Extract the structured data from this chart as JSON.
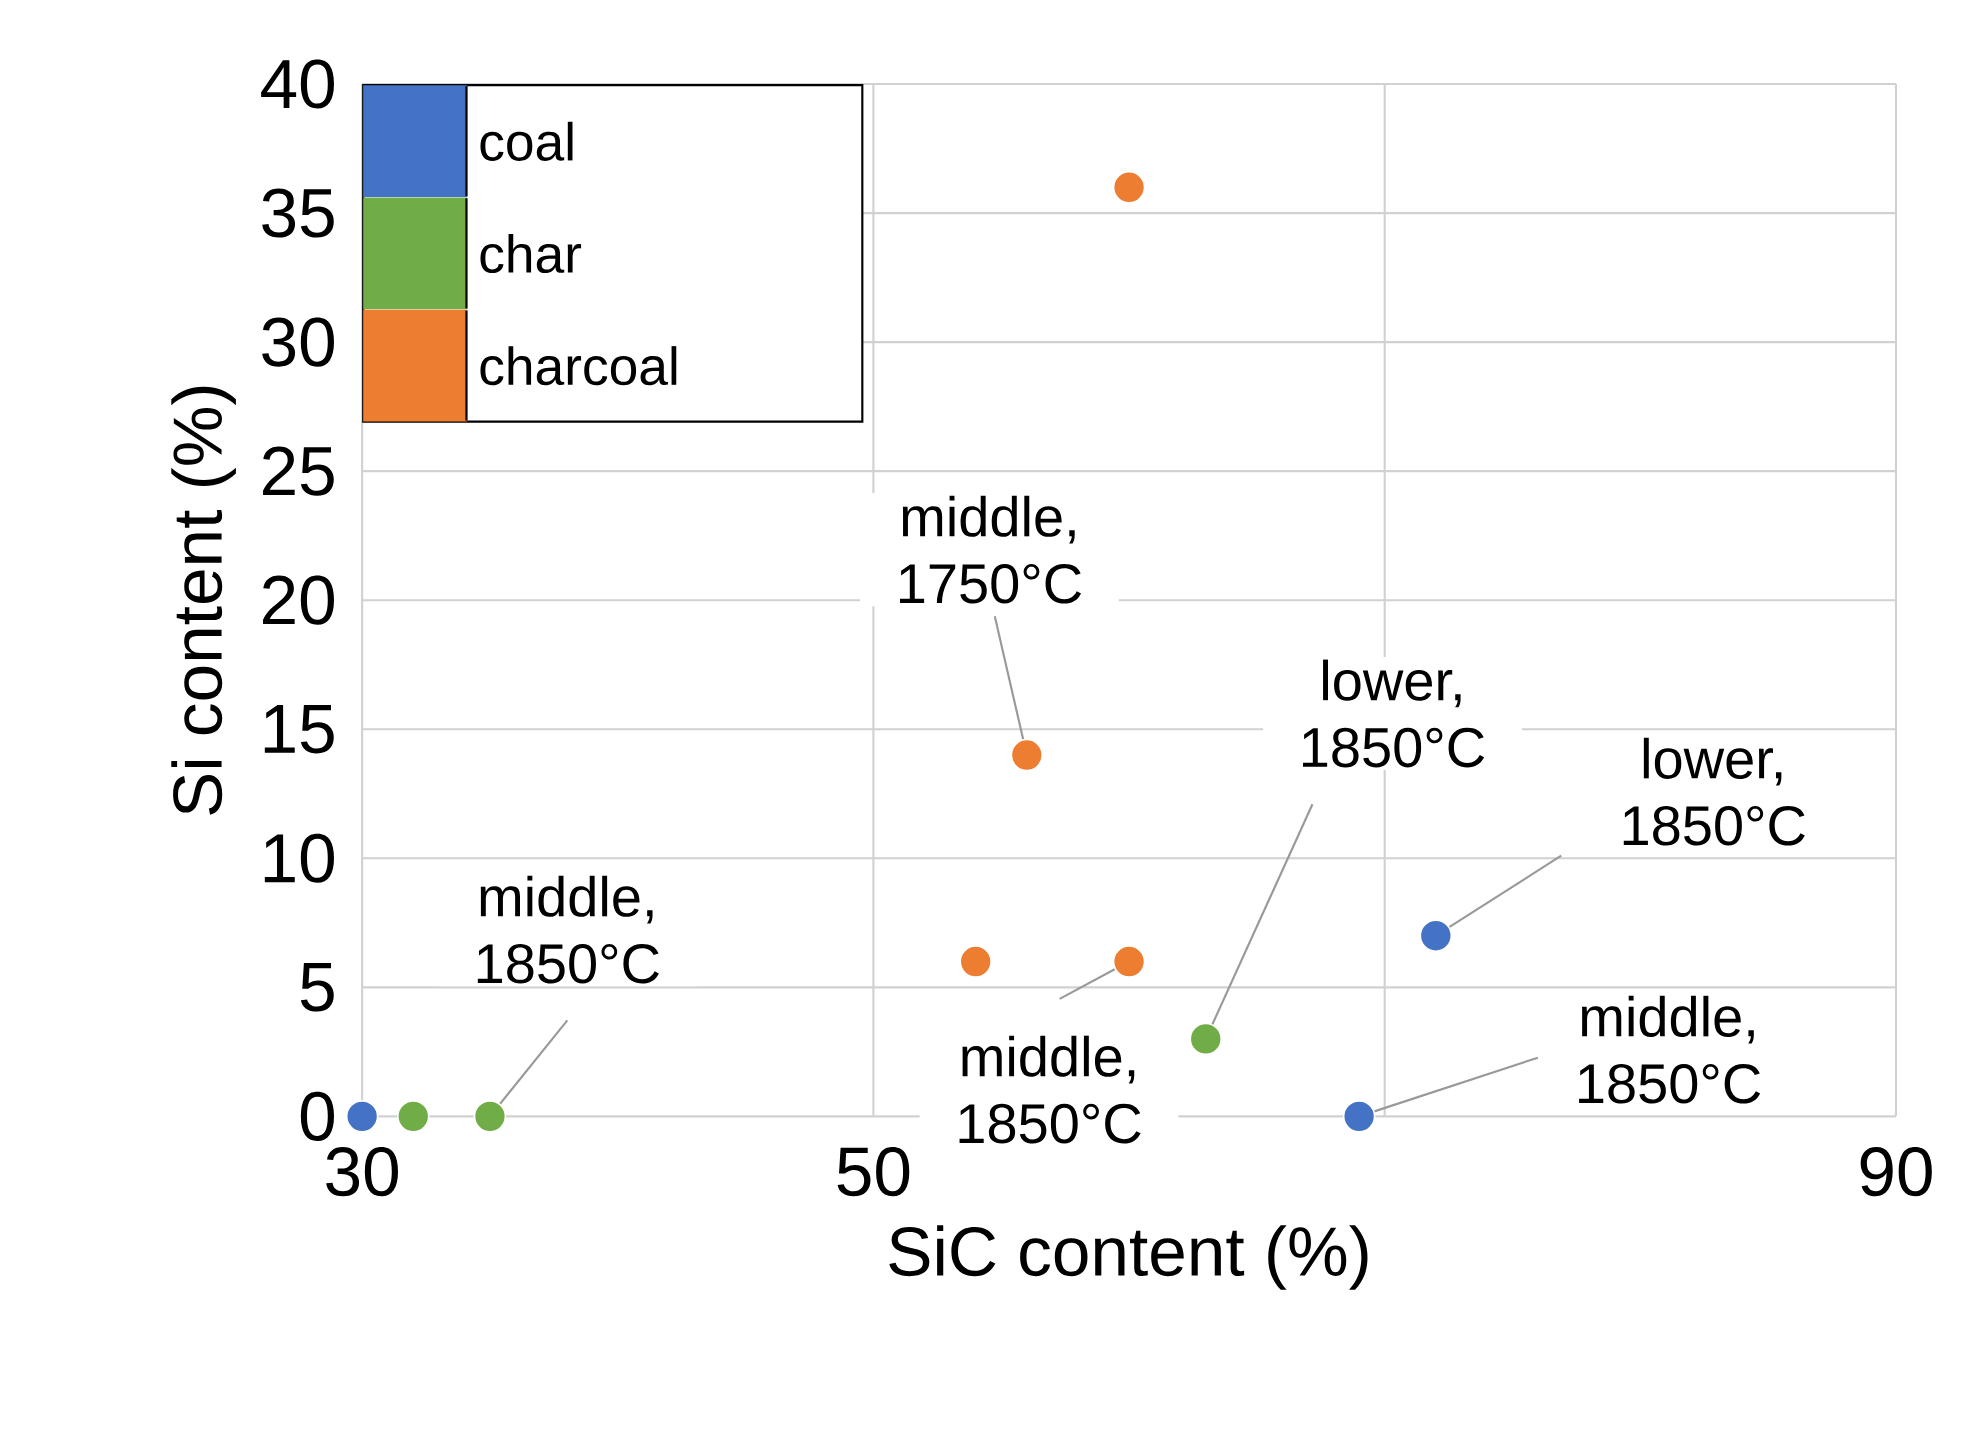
{
  "chart_data": {
    "type": "scatter",
    "xlabel": "SiC content (%)",
    "ylabel": "Si content (%)",
    "xlim": [
      30,
      90
    ],
    "ylim": [
      0,
      40
    ],
    "xticks": [
      30,
      50,
      {
        "value": 70,
        "label": null
      },
      90
    ],
    "yticks": [
      0,
      5,
      10,
      15,
      20,
      25,
      30,
      35,
      40
    ],
    "grid": true,
    "legend": "top left",
    "marker": "circle",
    "series": [
      {
        "name": "coal",
        "color": "#4472c4",
        "x": [
          30,
          69,
          72
        ],
        "values": [
          0,
          0,
          7
        ]
      },
      {
        "name": "char",
        "color": "#70ad47",
        "x": [
          32,
          35,
          63
        ],
        "values": [
          0,
          0,
          3
        ]
      },
      {
        "name": "charcoal",
        "color": "#ed7d31",
        "x": [
          60,
          56,
          54,
          60
        ],
        "values": [
          36,
          14,
          6,
          6
        ]
      }
    ],
    "annotations": [
      {
        "text": "middle, 1850°C",
        "x": 35,
        "y": 0
      },
      {
        "text": "middle, 1750°C",
        "x": 56,
        "y": 14
      },
      {
        "text": "lower, 1850°C",
        "x": 63,
        "y": 3
      },
      {
        "text": "lower, 1850°C",
        "x": 72,
        "y": 7
      },
      {
        "text": "middle, 1850°C",
        "x": 69,
        "y": 0
      },
      {
        "text": "middle, 1850°C",
        "x": 60,
        "y": 6
      }
    ]
  }
}
